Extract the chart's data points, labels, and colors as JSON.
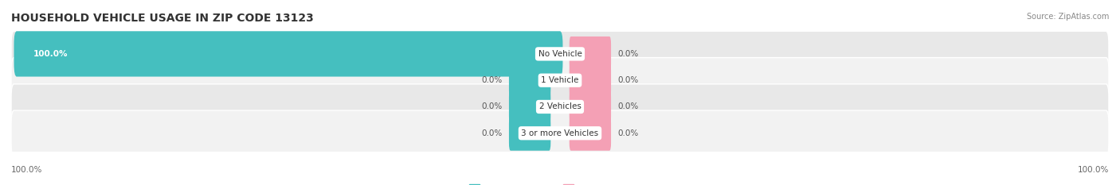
{
  "title": "HOUSEHOLD VEHICLE USAGE IN ZIP CODE 13123",
  "source": "Source: ZipAtlas.com",
  "categories": [
    "No Vehicle",
    "1 Vehicle",
    "2 Vehicles",
    "3 or more Vehicles"
  ],
  "owner_values": [
    100.0,
    0.0,
    0.0,
    0.0
  ],
  "renter_values": [
    0.0,
    0.0,
    0.0,
    0.0
  ],
  "owner_color": "#45BFBF",
  "renter_color": "#F4A0B5",
  "row_bg_color": "#E8E8E8",
  "row_bg_color2": "#F2F2F2",
  "title_fontsize": 10,
  "label_fontsize": 7.5,
  "cat_fontsize": 7.5,
  "tick_fontsize": 7.5,
  "legend_fontsize": 8,
  "max_value": 100.0,
  "left_axis_label": "100.0%",
  "right_axis_label": "100.0%",
  "figsize": [
    14.06,
    2.33
  ],
  "dpi": 100
}
